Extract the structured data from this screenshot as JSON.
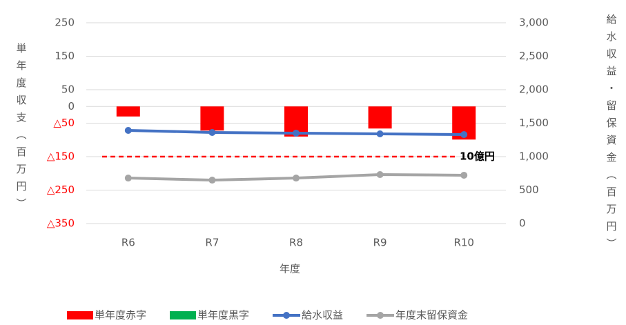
{
  "chart_data": {
    "type": "bar-line",
    "categories": [
      "R6",
      "R7",
      "R8",
      "R9",
      "R10"
    ],
    "xlabel": "年度",
    "ylabel": "単年度収支（百万円）",
    "y2label": "給水収益・留保資金（百万円）",
    "ylim": [
      -350,
      250
    ],
    "yticks": [
      250,
      150,
      50,
      0,
      {
        "value": -50,
        "label": "△50"
      },
      {
        "value": -150,
        "label": "△150"
      },
      {
        "value": -250,
        "label": "△250"
      },
      {
        "value": -350,
        "label": "△350"
      }
    ],
    "negative_tick_color": "#ff0000",
    "y2lim": [
      0,
      3000
    ],
    "y2ticks": [
      {
        "value": 3000,
        "label": "3,000"
      },
      {
        "value": 2500,
        "label": "2,500"
      },
      {
        "value": 2000,
        "label": "2,000"
      },
      {
        "value": 1500,
        "label": "1,500"
      },
      {
        "value": 1000,
        "label": "1,000"
      },
      500,
      0
    ],
    "grid": true,
    "reference_line": {
      "value": 1000,
      "axis": "y2",
      "label": "10億円",
      "color": "#ff0000"
    },
    "legend": "bottom",
    "series": [
      {
        "name": "単年度赤字",
        "kind": "bar",
        "color": "#ff0000",
        "values": [
          -30,
          -72,
          -90,
          -66,
          -99
        ]
      },
      {
        "name": "単年度黒字",
        "kind": "bar",
        "color": "#00b050",
        "values": [
          null,
          null,
          null,
          null,
          null
        ]
      },
      {
        "name": "給水収益",
        "kind": "line",
        "axis": "y2",
        "color": "#4472c4",
        "values": [
          1392,
          1361,
          1351,
          1340,
          1330
        ]
      },
      {
        "name": "年度末留保資金",
        "kind": "line",
        "axis": "y2",
        "color": "#a5a5a5",
        "values": [
          680,
          649,
          680,
          732,
          722
        ]
      }
    ]
  }
}
